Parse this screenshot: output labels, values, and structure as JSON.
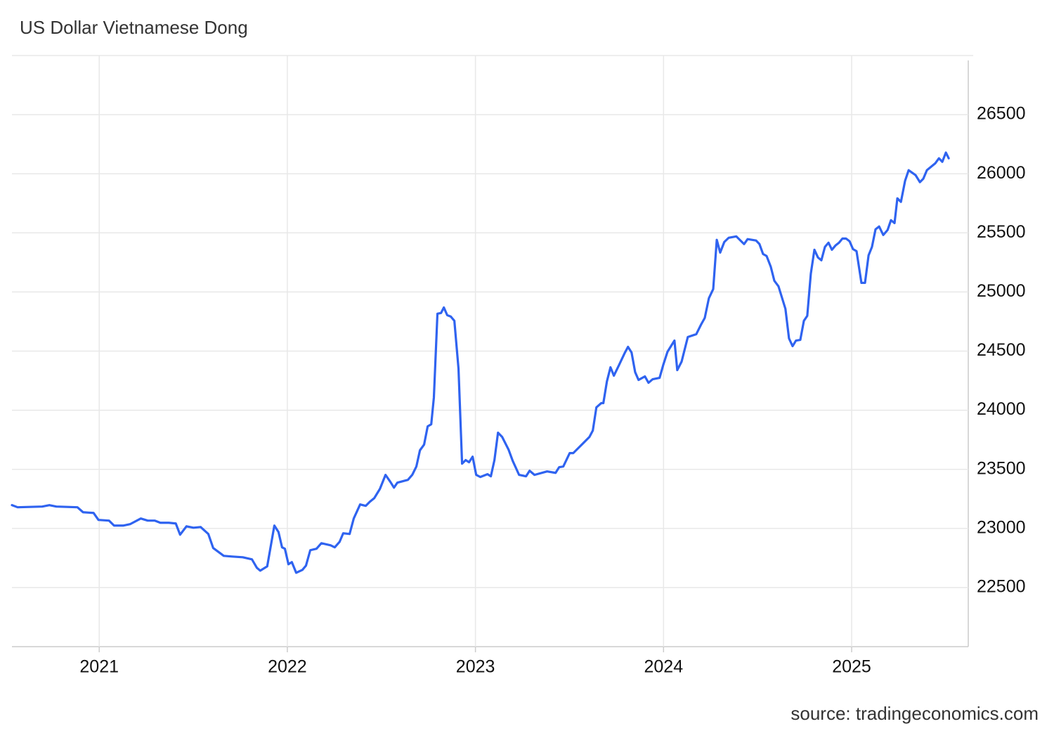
{
  "chart_data": {
    "type": "line",
    "title": "US Dollar Vietnamese Dong",
    "source": "source: tradingeconomics.com",
    "series": [
      {
        "name": "US Dollar Vietnamese Dong",
        "color": "#2f63f0",
        "x": [
          2020.536,
          2020.566,
          2020.697,
          2020.735,
          2020.772,
          2020.884,
          2020.914,
          2020.97,
          2020.996,
          2021.052,
          2021.079,
          2021.127,
          2021.164,
          2021.221,
          2021.258,
          2021.296,
          2021.325,
          2021.37,
          2021.407,
          2021.43,
          2021.464,
          2021.501,
          2021.539,
          2021.58,
          2021.606,
          2021.662,
          2021.707,
          2021.763,
          2021.812,
          2021.838,
          2021.856,
          2021.893,
          2021.931,
          2021.953,
          2021.972,
          2021.987,
          2022.006,
          2022.024,
          2022.047,
          2022.08,
          2022.099,
          2022.122,
          2022.155,
          2022.181,
          2022.23,
          2022.252,
          2022.278,
          2022.297,
          2022.331,
          2022.353,
          2022.387,
          2022.417,
          2022.439,
          2022.462,
          2022.492,
          2022.522,
          2022.548,
          2022.567,
          2022.585,
          2022.641,
          2022.664,
          2022.686,
          2022.705,
          2022.727,
          2022.746,
          2022.765,
          2022.779,
          2022.798,
          2022.817,
          2022.832,
          2022.85,
          2022.869,
          2022.888,
          2022.91,
          2022.929,
          2022.948,
          2022.966,
          2022.985,
          2023.004,
          2023.026,
          2023.064,
          2023.082,
          2023.101,
          2023.12,
          2023.142,
          2023.176,
          2023.198,
          2023.232,
          2023.269,
          2023.288,
          2023.314,
          2023.381,
          2023.426,
          2023.445,
          2023.467,
          2023.501,
          2023.52,
          2023.576,
          2023.606,
          2023.624,
          2023.643,
          2023.669,
          2023.68,
          2023.699,
          2023.718,
          2023.736,
          2023.763,
          2023.793,
          2023.811,
          2023.83,
          2023.849,
          2023.867,
          2023.901,
          2023.92,
          2023.942,
          2023.979,
          2023.998,
          2024.021,
          2024.058,
          2024.073,
          2024.096,
          2024.129,
          2024.174,
          2024.2,
          2024.219,
          2024.241,
          2024.264,
          2024.283,
          2024.301,
          2024.323,
          2024.346,
          2024.387,
          2024.428,
          2024.447,
          2024.492,
          2024.51,
          2024.529,
          2024.548,
          2024.57,
          2024.589,
          2024.611,
          2024.648,
          2024.667,
          2024.686,
          2024.704,
          2024.727,
          2024.746,
          2024.764,
          2024.783,
          2024.802,
          2024.821,
          2024.839,
          2024.858,
          2024.877,
          2024.895,
          2024.914,
          2024.933,
          2024.951,
          2024.97,
          2024.989,
          2025.007,
          2025.026,
          2025.052,
          2025.071,
          2025.09,
          2025.108,
          2025.127,
          2025.146,
          2025.168,
          2025.191,
          2025.209,
          2025.228,
          2025.243,
          2025.262,
          2025.284,
          2025.303,
          2025.34,
          2025.363,
          2025.381,
          2025.4,
          2025.445,
          2025.464,
          2025.482,
          2025.501,
          2025.516
        ],
        "values": [
          23197,
          23179,
          23185,
          23197,
          23185,
          23179,
          23137,
          23131,
          23072,
          23066,
          23024,
          23024,
          23036,
          23084,
          23066,
          23066,
          23048,
          23048,
          23042,
          22947,
          23018,
          23006,
          23012,
          22953,
          22834,
          22768,
          22762,
          22756,
          22738,
          22667,
          22643,
          22679,
          23024,
          22970,
          22840,
          22828,
          22697,
          22715,
          22625,
          22649,
          22685,
          22816,
          22828,
          22875,
          22857,
          22840,
          22887,
          22959,
          22953,
          23084,
          23203,
          23191,
          23226,
          23256,
          23334,
          23453,
          23393,
          23345,
          23387,
          23411,
          23453,
          23524,
          23661,
          23709,
          23863,
          23881,
          24107,
          24816,
          24822,
          24869,
          24804,
          24792,
          24756,
          24351,
          23548,
          23578,
          23560,
          23607,
          23453,
          23435,
          23459,
          23441,
          23578,
          23810,
          23774,
          23667,
          23572,
          23453,
          23441,
          23488,
          23453,
          23482,
          23470,
          23518,
          23524,
          23637,
          23637,
          23726,
          23774,
          23828,
          24024,
          24060,
          24060,
          24244,
          24363,
          24292,
          24381,
          24482,
          24536,
          24488,
          24322,
          24256,
          24286,
          24232,
          24262,
          24274,
          24381,
          24494,
          24589,
          24339,
          24411,
          24619,
          24643,
          24726,
          24780,
          24947,
          25024,
          25441,
          25333,
          25423,
          25458,
          25470,
          25405,
          25447,
          25435,
          25405,
          25321,
          25304,
          25214,
          25095,
          25048,
          24857,
          24607,
          24542,
          24589,
          24595,
          24756,
          24798,
          25155,
          25357,
          25292,
          25268,
          25381,
          25417,
          25357,
          25393,
          25417,
          25452,
          25452,
          25429,
          25363,
          25345,
          25077,
          25077,
          25310,
          25381,
          25530,
          25554,
          25482,
          25524,
          25607,
          25583,
          25792,
          25762,
          25940,
          26030,
          25988,
          25929,
          25958,
          26030,
          26089,
          26131,
          26101,
          26179,
          26131
        ]
      }
    ],
    "xlim": [
      2020.536,
      2025.62
    ],
    "xticks": [
      2021,
      2022,
      2023,
      2024,
      2025
    ],
    "ylim": [
      22000,
      27000
    ],
    "yticks": [
      22500,
      23000,
      23500,
      24000,
      24500,
      25000,
      25500,
      26000,
      26500
    ],
    "grid": true
  }
}
